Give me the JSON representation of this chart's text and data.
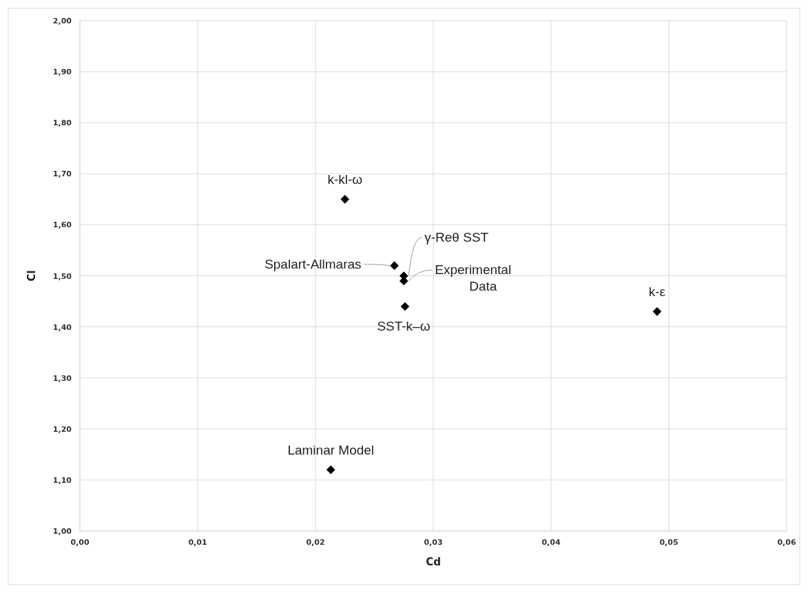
{
  "chart_data": {
    "type": "scatter",
    "xlabel": "Cd",
    "ylabel": "Cl",
    "marker": "diamond",
    "grid": true,
    "xlim": [
      0,
      0.06
    ],
    "ylim": [
      1,
      2
    ],
    "xticks": [
      {
        "value": 0,
        "label": "0,00"
      },
      {
        "value": 0.01,
        "label": "0,01"
      },
      {
        "value": 0.02,
        "label": "0,02"
      },
      {
        "value": 0.03,
        "label": "0,03"
      },
      {
        "value": 0.04,
        "label": "0,04"
      },
      {
        "value": 0.05,
        "label": "0,05"
      },
      {
        "value": 0.06,
        "label": "0,06"
      }
    ],
    "yticks": [
      {
        "value": 1,
        "label": "1,00"
      },
      {
        "value": 1.1,
        "label": "1,10"
      },
      {
        "value": 1.2,
        "label": "1,20"
      },
      {
        "value": 1.3,
        "label": "1,30"
      },
      {
        "value": 1.4,
        "label": "1,40"
      },
      {
        "value": 1.5,
        "label": "1,50"
      },
      {
        "value": 1.6,
        "label": "1,60"
      },
      {
        "value": 1.7,
        "label": "1,70"
      },
      {
        "value": 1.8,
        "label": "1,80"
      },
      {
        "value": 1.9,
        "label": "1,90"
      },
      {
        "value": 2,
        "label": "2,00"
      }
    ],
    "series": [
      {
        "name": "k-kl-ω",
        "color": "#000000",
        "x": [
          0.0225
        ],
        "values": [
          1.65
        ]
      },
      {
        "name": "Spalart-Allmaras",
        "color": "#000000",
        "x": [
          0.0267
        ],
        "values": [
          1.52
        ]
      },
      {
        "name": "γ-Reθ SST",
        "color": "#000000",
        "x": [
          0.0275
        ],
        "values": [
          1.5
        ]
      },
      {
        "name": "Experimental Data",
        "color": "#000000",
        "x": [
          0.0275
        ],
        "values": [
          1.49
        ]
      },
      {
        "name": "SST-k–ω",
        "color": "#000000",
        "x": [
          0.0276
        ],
        "values": [
          1.44
        ]
      },
      {
        "name": "k-ε",
        "color": "#000000",
        "x": [
          0.049
        ],
        "values": [
          1.43
        ]
      },
      {
        "name": "Laminar Model",
        "color": "#000000",
        "x": [
          0.0213
        ],
        "values": [
          1.12
        ]
      }
    ]
  }
}
